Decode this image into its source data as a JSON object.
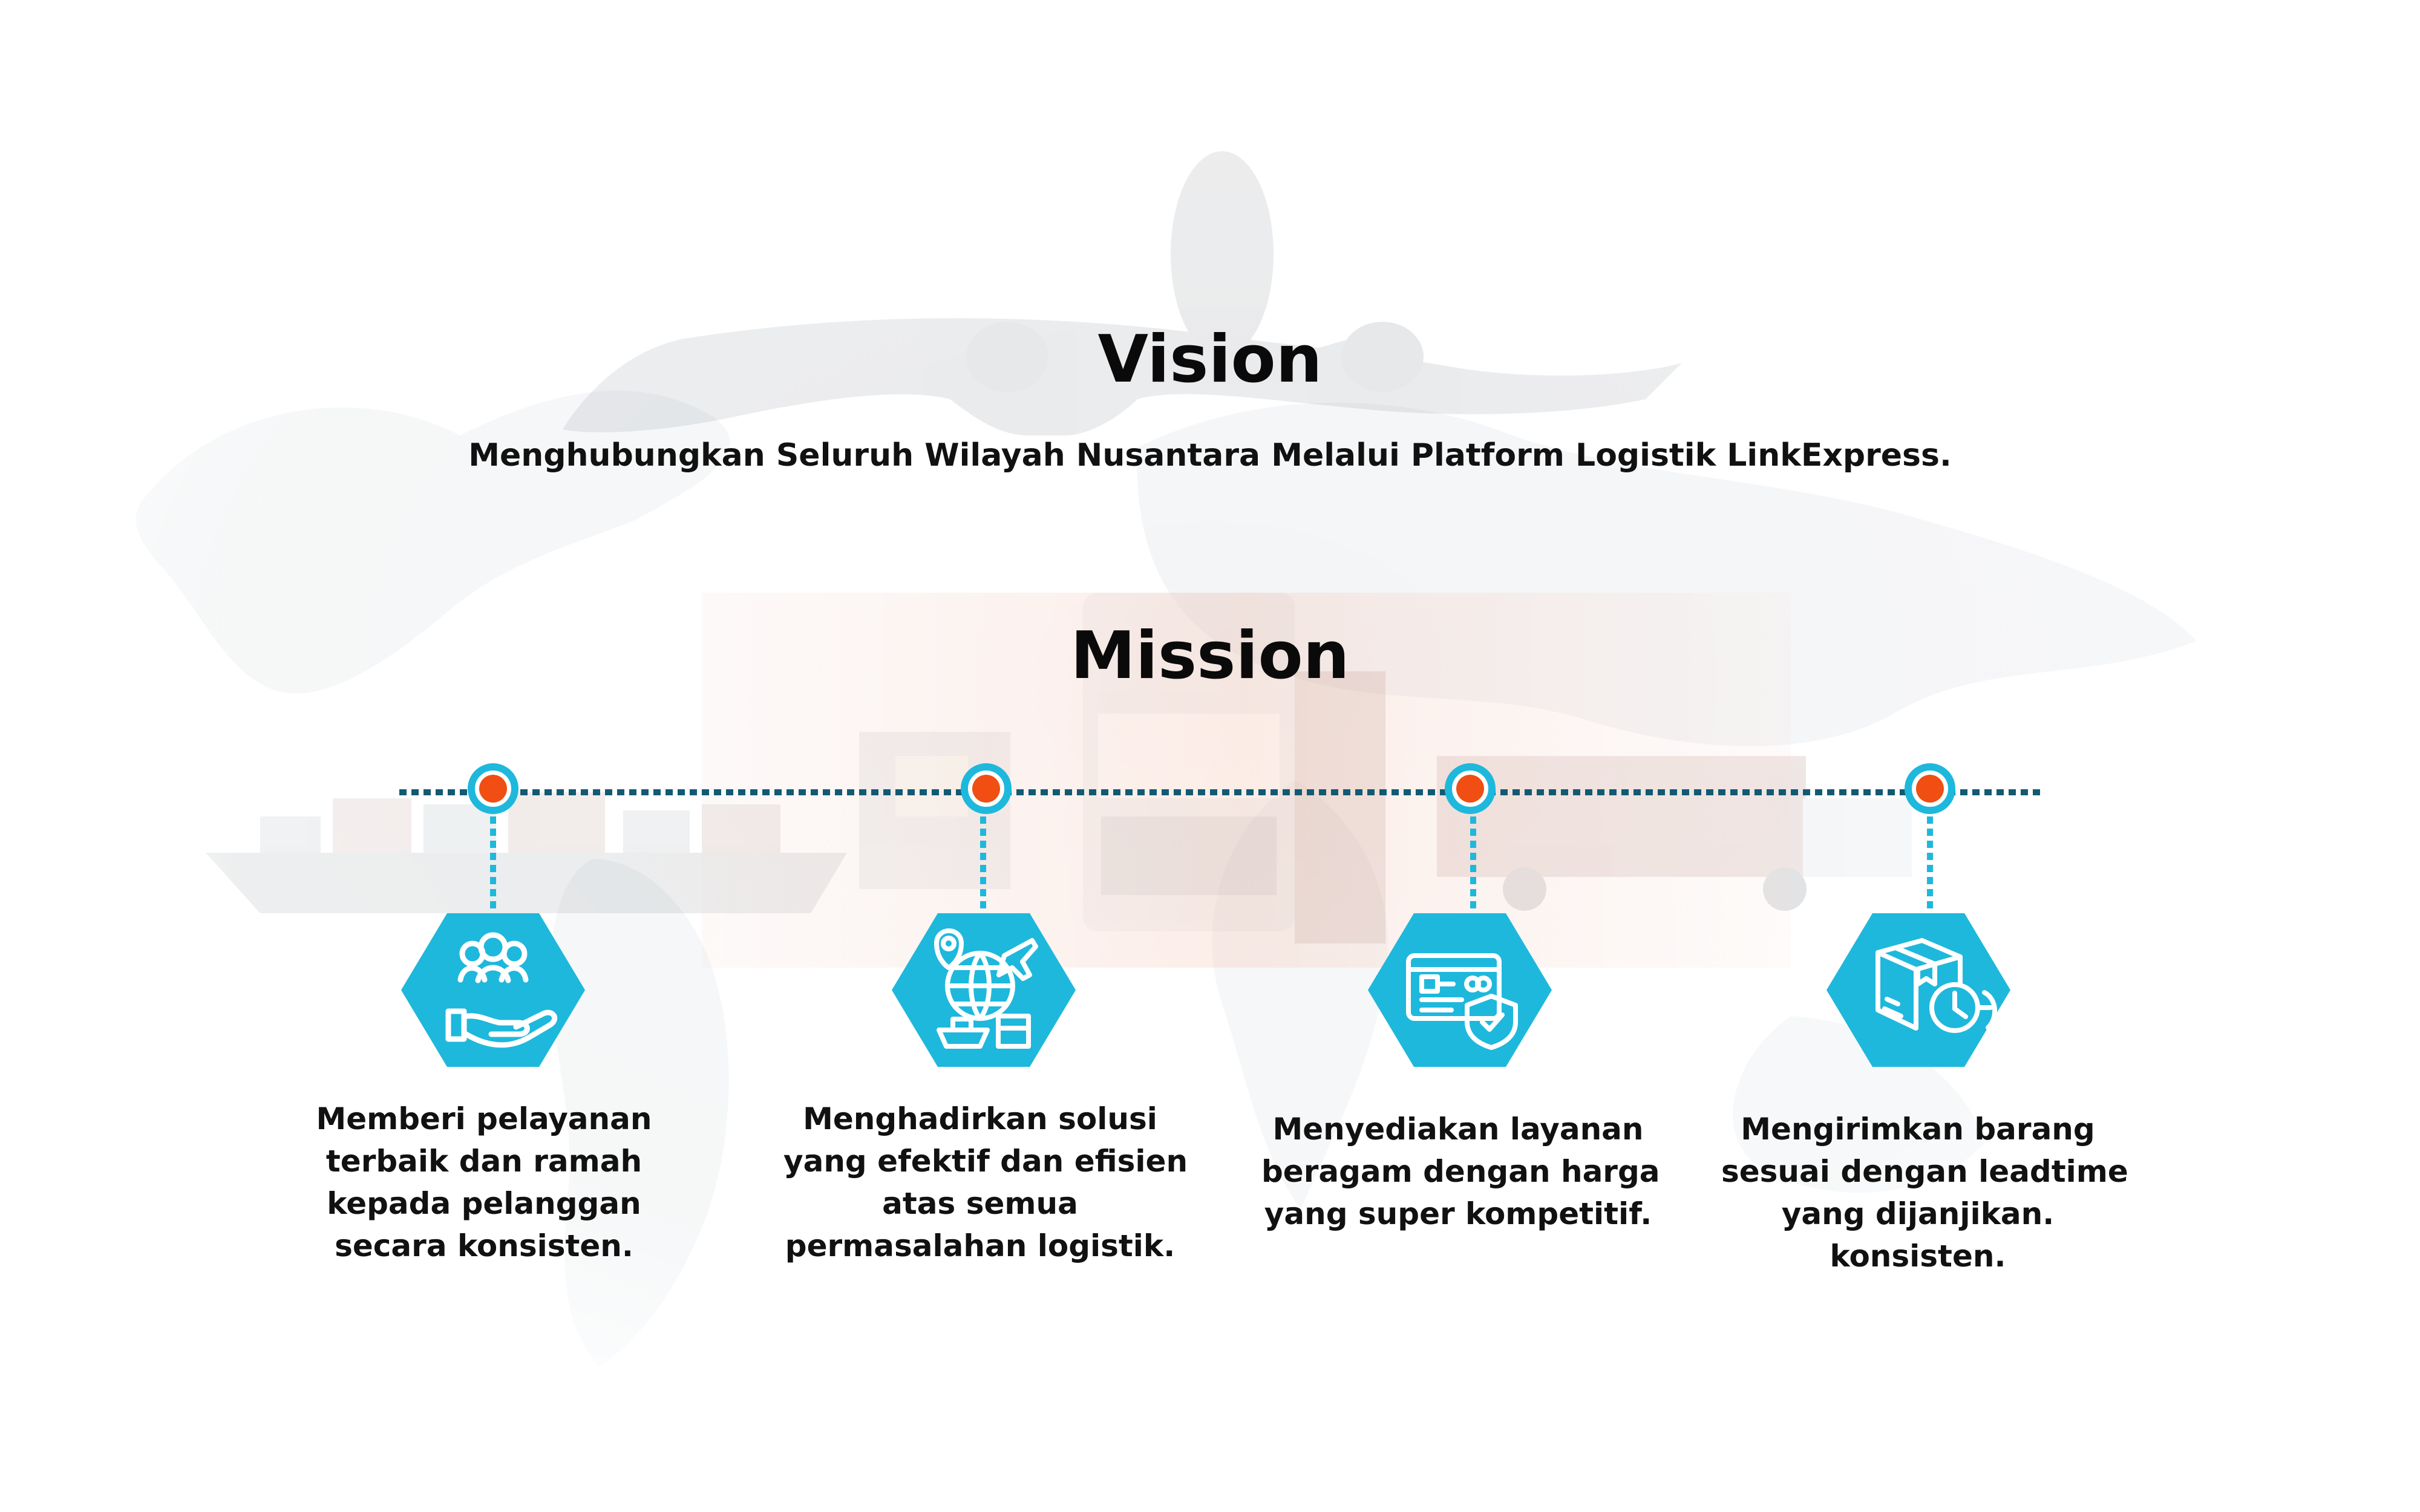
{
  "vision": {
    "title": "Vision",
    "text": "Menghubungkan Seluruh Wilayah Nusantara Melalui Platform Logistik LinkExpress."
  },
  "mission": {
    "title": "Mission",
    "items": [
      {
        "icon": "hand-people-icon",
        "lines": [
          "Memberi pelayanan",
          "terbaik dan ramah",
          "kepada pelanggan",
          "secara konsisten."
        ]
      },
      {
        "icon": "global-logistics-icon",
        "lines": [
          "Menghadirkan solusi",
          "yang efektif dan efisien",
          "atas semua",
          "permasalahan logistik."
        ]
      },
      {
        "icon": "payment-card-shield-icon",
        "lines": [
          "Menyediakan layanan",
          "beragam dengan harga",
          "yang super kompetitif."
        ]
      },
      {
        "icon": "box-clock-icon",
        "lines": [
          "Mengirimkan barang",
          "sesuai dengan leadtime",
          "yang dijanjikan.",
          "konsisten."
        ]
      }
    ]
  },
  "colors": {
    "accent": "#1eb8dc",
    "timeline": "#125a73",
    "marker": "#f04e13",
    "text": "#111111"
  }
}
